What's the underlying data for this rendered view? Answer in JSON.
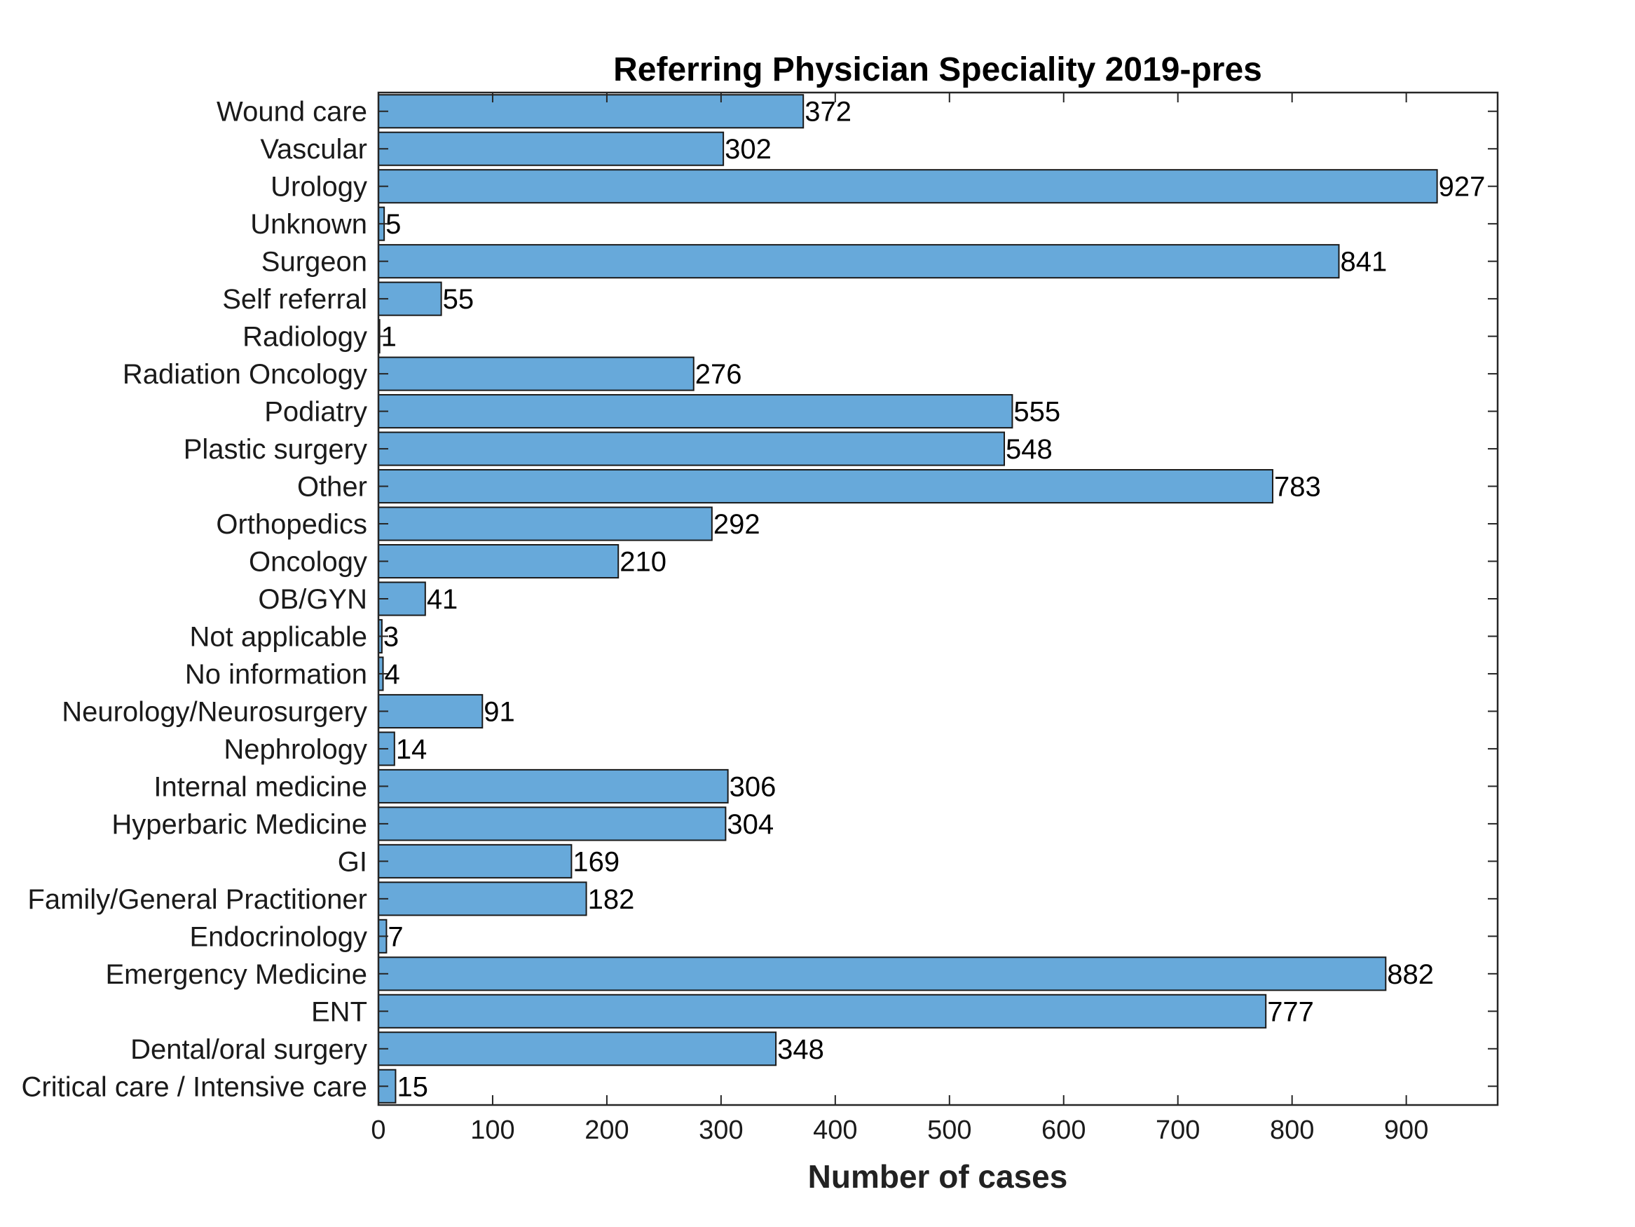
{
  "chart_data": {
    "type": "bar",
    "orientation": "horizontal",
    "title": "Referring Physician Speciality 2019-pres",
    "xlabel": "Number of cases",
    "ylabel": "",
    "xlim": [
      0,
      980
    ],
    "xticks": [
      0,
      100,
      200,
      300,
      400,
      500,
      600,
      700,
      800,
      900
    ],
    "bar_color": "#67a9da",
    "grid": false,
    "categories": [
      "Critical care / Intensive care",
      "Dental/oral surgery",
      "ENT",
      "Emergency Medicine",
      "Endocrinology",
      "Family/General Practitioner",
      "GI",
      "Hyperbaric Medicine",
      "Internal medicine",
      "Nephrology",
      "Neurology/Neurosurgery",
      "No information",
      "Not applicable",
      "OB/GYN",
      "Oncology",
      "Orthopedics",
      "Other",
      "Plastic surgery",
      "Podiatry",
      "Radiation Oncology",
      "Radiology",
      "Self referral",
      "Surgeon",
      "Unknown",
      "Urology",
      "Vascular",
      "Wound care"
    ],
    "values": [
      15,
      348,
      777,
      882,
      7,
      182,
      169,
      304,
      306,
      14,
      91,
      4,
      3,
      41,
      210,
      292,
      783,
      548,
      555,
      276,
      1,
      55,
      841,
      5,
      927,
      302,
      372
    ]
  }
}
